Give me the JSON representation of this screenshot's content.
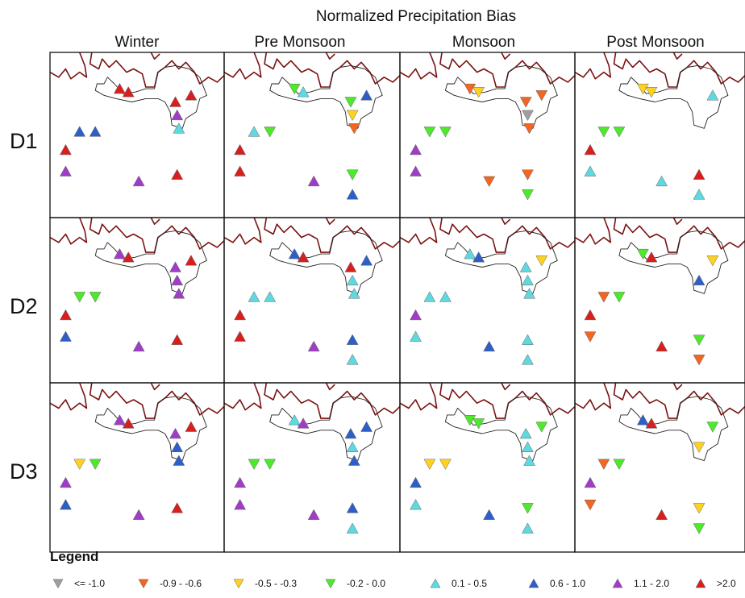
{
  "chart_data": {
    "type": "scatter",
    "title": "Normalized Precipitation Bias",
    "columns": [
      "Winter",
      "Pre Monsoon",
      "Monsoon",
      "Post Monsoon"
    ],
    "rows": [
      "D1",
      "D2",
      "D3"
    ],
    "legend": {
      "title": "Legend",
      "classes": [
        {
          "label": "<= -1.0",
          "symbol": "down",
          "color": "#9e9e9e"
        },
        {
          "label": "-0.9 - -0.6",
          "symbol": "down",
          "color": "#f26522"
        },
        {
          "label": "-0.5 - -0.3",
          "symbol": "down",
          "color": "#ffd21f"
        },
        {
          "label": "-0.2 - 0.0",
          "symbol": "down",
          "color": "#4cea2a"
        },
        {
          "label": "0.1 - 0.5",
          "symbol": "up",
          "color": "#5fd8e0"
        },
        {
          "label": "0.6 - 1.0",
          "symbol": "up",
          "color": "#2e5fc8"
        },
        {
          "label": "1.1 - 2.0",
          "symbol": "up",
          "color": "#a03cc8"
        },
        {
          "label": ">2.0",
          "symbol": "up",
          "color": "#d91e1e"
        }
      ]
    },
    "stations": [
      [
        0.4,
        0.22
      ],
      [
        0.45,
        0.24
      ],
      [
        0.72,
        0.3
      ],
      [
        0.81,
        0.26
      ],
      [
        0.73,
        0.38
      ],
      [
        0.74,
        0.46
      ],
      [
        0.17,
        0.48
      ],
      [
        0.26,
        0.48
      ],
      [
        0.09,
        0.59
      ],
      [
        0.09,
        0.72
      ],
      [
        0.51,
        0.78
      ],
      [
        0.73,
        0.74
      ],
      [
        0.73,
        0.86
      ]
    ],
    "panels": [
      [
        [
          7,
          7,
          7,
          7,
          6,
          4,
          5,
          5,
          7,
          6,
          6,
          7,
          null
        ],
        [
          3,
          4,
          3,
          5,
          2,
          1,
          4,
          3,
          7,
          7,
          6,
          3,
          5
        ],
        [
          1,
          2,
          1,
          1,
          0,
          1,
          3,
          3,
          6,
          6,
          1,
          1,
          3
        ],
        [
          2,
          2,
          null,
          4,
          null,
          null,
          3,
          3,
          7,
          4,
          4,
          7,
          4
        ]
      ],
      [
        [
          6,
          7,
          6,
          7,
          6,
          6,
          3,
          3,
          7,
          5,
          6,
          7,
          null
        ],
        [
          5,
          7,
          7,
          5,
          4,
          4,
          4,
          4,
          7,
          7,
          6,
          5,
          4
        ],
        [
          4,
          5,
          4,
          2,
          4,
          4,
          4,
          4,
          6,
          4,
          5,
          4,
          4
        ],
        [
          3,
          7,
          null,
          2,
          5,
          null,
          1,
          3,
          7,
          1,
          7,
          3,
          1
        ]
      ],
      [
        [
          6,
          7,
          6,
          7,
          5,
          5,
          2,
          3,
          6,
          5,
          6,
          7,
          null
        ],
        [
          4,
          6,
          5,
          5,
          4,
          5,
          3,
          3,
          6,
          6,
          6,
          5,
          4
        ],
        [
          3,
          3,
          4,
          3,
          4,
          4,
          2,
          2,
          5,
          4,
          5,
          3,
          4
        ],
        [
          5,
          7,
          null,
          3,
          2,
          null,
          1,
          3,
          6,
          1,
          7,
          2,
          3
        ]
      ]
    ],
    "grid": false
  }
}
